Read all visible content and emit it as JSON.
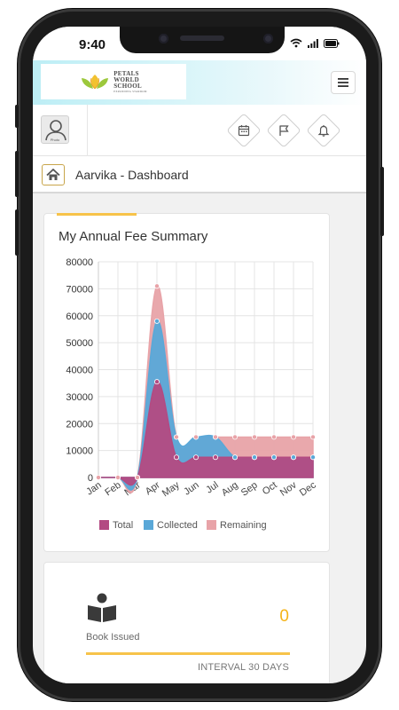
{
  "status_bar": {
    "time": "9:40"
  },
  "header": {
    "logo_line1": "PETALS",
    "logo_line2": "WORLD",
    "logo_line3": "SCHOOL",
    "logo_tagline": "EXPANDING STARDOM",
    "menu_icon": "hamburger-icon"
  },
  "toolbar": {
    "avatar_label": "Photo",
    "icons": [
      "calendar-icon",
      "flag-icon",
      "bell-icon"
    ]
  },
  "breadcrumb": {
    "title": "Aarvika - Dashboard"
  },
  "fee_card": {
    "title": "My Annual Fee Summary"
  },
  "chart_data": {
    "type": "area",
    "title": "My Annual Fee Summary",
    "categories": [
      "Jan",
      "Feb",
      "Mar",
      "Apr",
      "May",
      "Jun",
      "Jul",
      "Aug",
      "Sep",
      "Oct",
      "Nov",
      "Dec"
    ],
    "stacked": true,
    "series": [
      {
        "name": "Total",
        "color": "#b34a82",
        "values": [
          0,
          0,
          0,
          35500,
          7500,
          7500,
          7500,
          7500,
          7500,
          7500,
          7500,
          7500
        ]
      },
      {
        "name": "Collected",
        "color": "#5aa8d8",
        "values": [
          0,
          0,
          0,
          22500,
          7500,
          7500,
          7500,
          0,
          0,
          0,
          0,
          0
        ]
      },
      {
        "name": "Remaining",
        "color": "#e8a3a8",
        "values": [
          0,
          0,
          0,
          13000,
          0,
          0,
          0,
          7500,
          7500,
          7500,
          7500,
          7500
        ]
      }
    ],
    "ylim": [
      0,
      80000
    ],
    "yticks": [
      0,
      10000,
      20000,
      30000,
      40000,
      50000,
      60000,
      70000,
      80000
    ],
    "grid": true,
    "legend": "bottom"
  },
  "book_card": {
    "label": "Book Issued",
    "count": "0",
    "interval": "INTERVAL 30 DAYS"
  },
  "colors": {
    "accent": "#f7c34a",
    "count": "#f5b318"
  }
}
